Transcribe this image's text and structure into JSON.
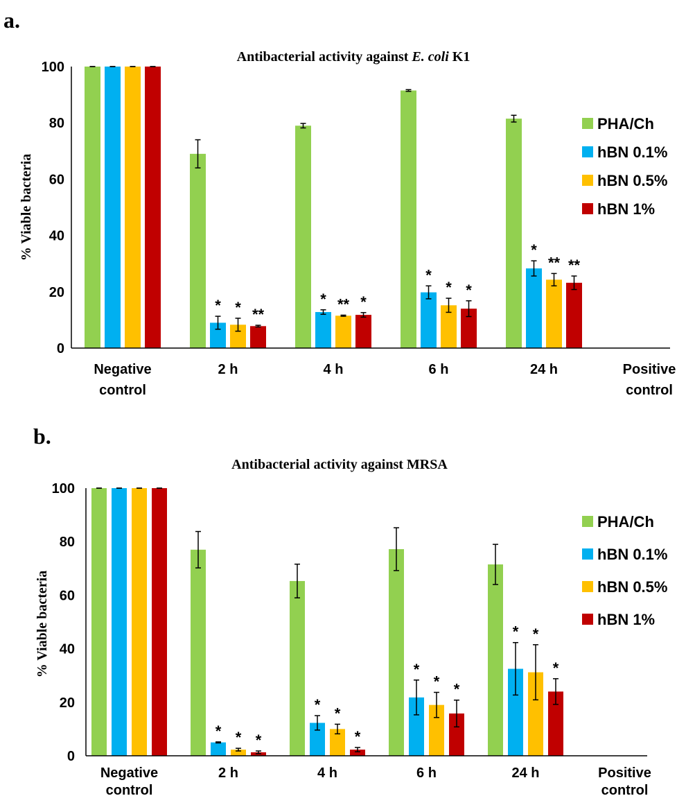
{
  "colors": {
    "PHA/Ch": "#92D050",
    "hBN 0.1%": "#00B0F0",
    "hBN 0.5%": "#FFC000",
    "hBN 1%": "#C00000"
  },
  "chart_data": [
    {
      "panel_label": "a.",
      "type": "bar",
      "title_prefix": "Antibacterial activity against ",
      "title_italic": "E. coli",
      "title_suffix": " K1",
      "ylabel": "% Viable bacteria",
      "xlabel": "",
      "ylim": [
        0,
        100
      ],
      "yticks": [
        0,
        20,
        40,
        60,
        80,
        100
      ],
      "grid": false,
      "legend_position": "right",
      "categories": [
        [
          "Negative",
          "control"
        ],
        [
          "2 h"
        ],
        [
          "4 h"
        ],
        [
          "6 h"
        ],
        [
          "24 h"
        ],
        [
          "Positive",
          "control"
        ]
      ],
      "series": [
        {
          "name": "PHA/Ch",
          "values": [
            100,
            69,
            79,
            91.5,
            81.5,
            0
          ],
          "errors": [
            0,
            5,
            0.8,
            0.3,
            1.2,
            0
          ],
          "annotations": [
            "",
            "",
            "",
            "",
            "",
            ""
          ]
        },
        {
          "name": "hBN 0.1%",
          "values": [
            100,
            9,
            12.8,
            19.8,
            28.3,
            0
          ],
          "errors": [
            0,
            2.3,
            0.8,
            2.3,
            2.7,
            0
          ],
          "annotations": [
            "",
            "*",
            "*",
            "*",
            "*",
            ""
          ]
        },
        {
          "name": "hBN 0.5%",
          "values": [
            100,
            8.3,
            11.5,
            15.2,
            24.3,
            0
          ],
          "errors": [
            0,
            2.3,
            0.2,
            2.5,
            2.2,
            0
          ],
          "annotations": [
            "",
            "*",
            "**",
            "*",
            "**",
            ""
          ]
        },
        {
          "name": "hBN 1%",
          "values": [
            100,
            7.8,
            11.8,
            14,
            23.2,
            0
          ],
          "errors": [
            0,
            0.3,
            0.8,
            2.8,
            2.4,
            0
          ],
          "annotations": [
            "",
            "**",
            "*",
            "*",
            "**",
            ""
          ]
        }
      ]
    },
    {
      "panel_label": "b.",
      "type": "bar",
      "title_prefix": "Antibacterial activity against MRSA",
      "title_italic": "",
      "title_suffix": "",
      "ylabel": "% Viable bacteria",
      "xlabel": "",
      "ylim": [
        0,
        100
      ],
      "yticks": [
        0,
        20,
        40,
        60,
        80,
        100
      ],
      "grid": false,
      "legend_position": "right",
      "categories": [
        [
          "Negative",
          "control"
        ],
        [
          "2 h"
        ],
        [
          "4 h"
        ],
        [
          "6 h"
        ],
        [
          "24 h"
        ],
        [
          "Positive",
          "control"
        ]
      ],
      "series": [
        {
          "name": "PHA/Ch",
          "values": [
            100,
            77,
            65.3,
            77.2,
            71.5,
            0
          ],
          "errors": [
            0,
            6.8,
            6.3,
            8,
            7.5,
            0
          ],
          "annotations": [
            "",
            "",
            "",
            "",
            "",
            ""
          ]
        },
        {
          "name": "hBN 0.1%",
          "values": [
            100,
            5,
            12.3,
            21.8,
            32.5,
            0
          ],
          "errors": [
            0,
            0.2,
            2.7,
            6.5,
            9.8,
            0
          ],
          "annotations": [
            "",
            "*",
            "*",
            "*",
            "*",
            ""
          ]
        },
        {
          "name": "hBN 0.5%",
          "values": [
            100,
            2.3,
            10,
            19,
            31.2,
            0
          ],
          "errors": [
            0,
            0.5,
            1.8,
            4.7,
            10.3,
            0
          ],
          "annotations": [
            "",
            "*",
            "*",
            "*",
            "*",
            ""
          ]
        },
        {
          "name": "hBN 1%",
          "values": [
            100,
            1.3,
            2.3,
            15.8,
            24,
            0
          ],
          "errors": [
            0,
            0.5,
            0.8,
            5,
            4.8,
            0
          ],
          "annotations": [
            "",
            "*",
            "*",
            "*",
            "*",
            ""
          ]
        }
      ]
    }
  ]
}
